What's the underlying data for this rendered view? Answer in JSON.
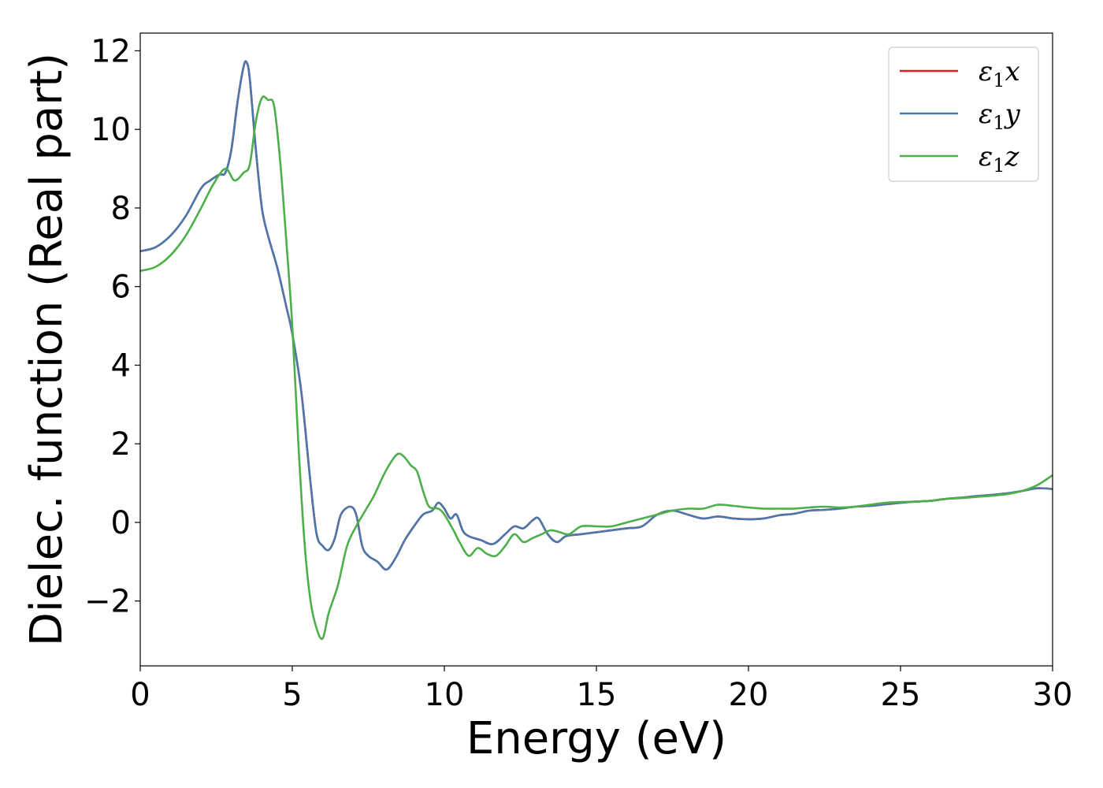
{
  "chart_data": {
    "type": "line",
    "xlabel": "Energy (eV)",
    "ylabel": "Dielec. function (Real part)",
    "xlim": [
      0,
      30
    ],
    "ylim": [
      -3.65,
      12.45
    ],
    "xticks": [
      0,
      5,
      10,
      15,
      20,
      25,
      30
    ],
    "xtick_labels": [
      "0",
      "5",
      "10",
      "15",
      "20",
      "25",
      "30"
    ],
    "yticks": [
      -2,
      0,
      2,
      4,
      6,
      8,
      10,
      12
    ],
    "ytick_labels": [
      "−2",
      "0",
      "2",
      "4",
      "6",
      "8",
      "10",
      "12"
    ],
    "grid": false,
    "legend_position": "top-right",
    "series": [
      {
        "name": "ε1x",
        "label_main": "ε",
        "label_sub": "1",
        "label_var": "x",
        "color": "#e41a1c",
        "x": [
          0,
          0.5,
          1.0,
          1.5,
          2.0,
          2.3,
          2.6,
          2.8,
          3.0,
          3.2,
          3.4,
          3.5,
          3.6,
          3.8,
          4.0,
          4.2,
          4.5,
          4.8,
          5.0,
          5.3,
          5.6,
          5.8,
          6.0,
          6.2,
          6.4,
          6.6,
          6.9,
          7.1,
          7.3,
          7.5,
          7.8,
          8.1,
          8.4,
          8.7,
          9.0,
          9.3,
          9.6,
          9.8,
          10.0,
          10.2,
          10.4,
          10.6,
          10.8,
          11.2,
          11.6,
          12.0,
          12.3,
          12.6,
          12.9,
          13.1,
          13.4,
          13.7,
          14.0,
          14.5,
          15.0,
          15.5,
          16.0,
          16.5,
          17.0,
          17.5,
          18.0,
          18.5,
          19.0,
          19.5,
          20.0,
          20.5,
          21.0,
          21.5,
          22.0,
          22.5,
          23.0,
          23.5,
          24.0,
          24.5,
          25.0,
          25.5,
          26.0,
          26.5,
          27.0,
          27.5,
          28.0,
          28.5,
          29.0,
          29.5,
          30.0
        ],
        "y": [
          6.9,
          7.0,
          7.3,
          7.8,
          8.5,
          8.7,
          8.85,
          8.9,
          9.5,
          10.7,
          11.6,
          11.7,
          11.3,
          9.5,
          8.0,
          7.3,
          6.5,
          5.5,
          4.8,
          3.3,
          1.0,
          -0.3,
          -0.6,
          -0.7,
          -0.4,
          0.2,
          0.4,
          0.2,
          -0.6,
          -0.85,
          -1.0,
          -1.2,
          -0.9,
          -0.45,
          -0.1,
          0.2,
          0.3,
          0.5,
          0.35,
          0.1,
          0.2,
          -0.2,
          -0.35,
          -0.45,
          -0.55,
          -0.3,
          -0.1,
          -0.15,
          0.05,
          0.1,
          -0.3,
          -0.5,
          -0.35,
          -0.3,
          -0.25,
          -0.2,
          -0.15,
          -0.1,
          0.2,
          0.3,
          0.2,
          0.1,
          0.15,
          0.1,
          0.08,
          0.1,
          0.18,
          0.22,
          0.3,
          0.32,
          0.35,
          0.4,
          0.42,
          0.46,
          0.5,
          0.53,
          0.55,
          0.6,
          0.63,
          0.67,
          0.7,
          0.74,
          0.8,
          0.87,
          0.85
        ]
      },
      {
        "name": "ε1y",
        "label_main": "ε",
        "label_sub": "1",
        "label_var": "y",
        "color": "#4a78ac",
        "x": [
          0,
          0.5,
          1.0,
          1.5,
          2.0,
          2.3,
          2.6,
          2.8,
          3.0,
          3.2,
          3.4,
          3.5,
          3.6,
          3.8,
          4.0,
          4.2,
          4.5,
          4.8,
          5.0,
          5.3,
          5.6,
          5.8,
          6.0,
          6.2,
          6.4,
          6.6,
          6.9,
          7.1,
          7.3,
          7.5,
          7.8,
          8.1,
          8.4,
          8.7,
          9.0,
          9.3,
          9.6,
          9.8,
          10.0,
          10.2,
          10.4,
          10.6,
          10.8,
          11.2,
          11.6,
          12.0,
          12.3,
          12.6,
          12.9,
          13.1,
          13.4,
          13.7,
          14.0,
          14.5,
          15.0,
          15.5,
          16.0,
          16.5,
          17.0,
          17.5,
          18.0,
          18.5,
          19.0,
          19.5,
          20.0,
          20.5,
          21.0,
          21.5,
          22.0,
          22.5,
          23.0,
          23.5,
          24.0,
          24.5,
          25.0,
          25.5,
          26.0,
          26.5,
          27.0,
          27.5,
          28.0,
          28.5,
          29.0,
          29.5,
          30.0
        ],
        "y": [
          6.9,
          7.0,
          7.3,
          7.8,
          8.5,
          8.7,
          8.85,
          8.9,
          9.5,
          10.7,
          11.6,
          11.7,
          11.3,
          9.5,
          8.0,
          7.3,
          6.5,
          5.5,
          4.8,
          3.3,
          1.0,
          -0.3,
          -0.6,
          -0.7,
          -0.4,
          0.2,
          0.4,
          0.2,
          -0.6,
          -0.85,
          -1.0,
          -1.2,
          -0.9,
          -0.45,
          -0.1,
          0.2,
          0.3,
          0.5,
          0.35,
          0.1,
          0.2,
          -0.2,
          -0.35,
          -0.45,
          -0.55,
          -0.3,
          -0.1,
          -0.15,
          0.05,
          0.1,
          -0.3,
          -0.5,
          -0.35,
          -0.3,
          -0.25,
          -0.2,
          -0.15,
          -0.1,
          0.2,
          0.3,
          0.2,
          0.1,
          0.15,
          0.1,
          0.08,
          0.1,
          0.18,
          0.22,
          0.3,
          0.32,
          0.35,
          0.4,
          0.42,
          0.46,
          0.5,
          0.53,
          0.55,
          0.6,
          0.63,
          0.67,
          0.7,
          0.74,
          0.8,
          0.87,
          0.85
        ]
      },
      {
        "name": "ε1z",
        "label_main": "ε",
        "label_sub": "1",
        "label_var": "z",
        "color": "#4daf4a",
        "x": [
          0,
          0.5,
          1.0,
          1.5,
          2.0,
          2.4,
          2.8,
          3.1,
          3.4,
          3.6,
          3.8,
          4.0,
          4.2,
          4.4,
          4.6,
          4.8,
          5.0,
          5.2,
          5.4,
          5.6,
          5.8,
          6.0,
          6.2,
          6.5,
          6.8,
          7.1,
          7.4,
          7.7,
          8.0,
          8.3,
          8.5,
          8.7,
          8.9,
          9.1,
          9.3,
          9.5,
          9.8,
          10.0,
          10.3,
          10.5,
          10.8,
          11.1,
          11.4,
          11.7,
          12.0,
          12.3,
          12.6,
          12.9,
          13.2,
          13.5,
          13.8,
          14.1,
          14.5,
          15.0,
          15.5,
          16.0,
          16.5,
          17.0,
          17.5,
          18.0,
          18.5,
          19.0,
          19.5,
          20.0,
          20.5,
          21.0,
          21.5,
          22.0,
          22.5,
          23.0,
          23.5,
          24.0,
          24.5,
          25.0,
          25.5,
          26.0,
          26.5,
          27.0,
          27.5,
          28.0,
          28.5,
          29.0,
          29.5,
          30.0
        ],
        "y": [
          6.4,
          6.5,
          6.8,
          7.3,
          8.0,
          8.6,
          9.0,
          8.7,
          8.9,
          9.1,
          10.2,
          10.8,
          10.75,
          10.6,
          9.2,
          7.2,
          5.0,
          2.0,
          -0.5,
          -2.0,
          -2.7,
          -2.95,
          -2.3,
          -1.6,
          -0.6,
          -0.1,
          0.3,
          0.7,
          1.2,
          1.6,
          1.75,
          1.65,
          1.45,
          1.3,
          0.8,
          0.4,
          0.35,
          0.2,
          -0.2,
          -0.5,
          -0.85,
          -0.65,
          -0.8,
          -0.85,
          -0.6,
          -0.3,
          -0.5,
          -0.4,
          -0.3,
          -0.2,
          -0.25,
          -0.3,
          -0.1,
          -0.1,
          -0.1,
          0.0,
          0.1,
          0.2,
          0.3,
          0.35,
          0.35,
          0.45,
          0.42,
          0.38,
          0.35,
          0.35,
          0.35,
          0.38,
          0.4,
          0.38,
          0.4,
          0.45,
          0.5,
          0.52,
          0.53,
          0.55,
          0.6,
          0.62,
          0.65,
          0.68,
          0.72,
          0.8,
          0.95,
          1.2
        ]
      }
    ]
  }
}
